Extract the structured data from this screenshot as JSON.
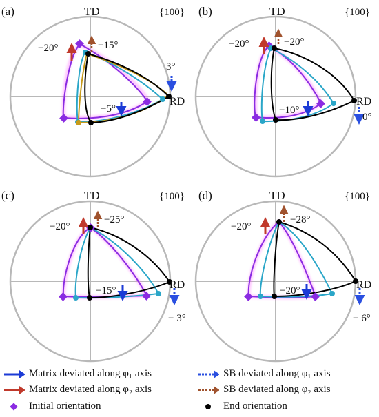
{
  "panels": [
    {
      "id": "a",
      "label": "(a)",
      "plane": "{100}",
      "td": "TD",
      "rd": "RD",
      "annotations": [
        "−20°",
        "−15°",
        "3°",
        "−5°"
      ]
    },
    {
      "id": "b",
      "label": "(b)",
      "plane": "{100}",
      "td": "TD",
      "rd": "RD",
      "annotations": [
        "−20°",
        "−20°",
        "0°",
        "−10°"
      ]
    },
    {
      "id": "c",
      "label": "(c)",
      "plane": "{100}",
      "td": "TD",
      "rd": "RD",
      "annotations": [
        "−20°",
        "−25°",
        "− 3°",
        "−15°"
      ]
    },
    {
      "id": "d",
      "label": "(d)",
      "plane": "{100}",
      "td": "TD",
      "rd": "RD",
      "annotations": [
        "−20°",
        "−28°",
        "− 6°",
        "−20°"
      ]
    }
  ],
  "legend": {
    "matrix_phi1": "Matrix deviated along φ₁ axis",
    "matrix_phi2": "Matrix deviated along φ₂ axis",
    "sb_phi1": "SB deviated along φ₁ axis",
    "sb_phi2": "SB deviated along φ₂ axis",
    "initial": "Initial orientation",
    "end": "End orientation"
  },
  "colors": {
    "circle": "#b8b8b8",
    "axis": "#b8b8b8",
    "purple": "#8a2be2",
    "cyan": "#2aa6c8",
    "gold": "#c79a1a",
    "black": "#000000",
    "blue_arrow": "#1c3bd6",
    "red_arrow": "#c0392b",
    "brown_dotted": "#a0522d",
    "blue_dotted": "#2a4fe0"
  }
}
